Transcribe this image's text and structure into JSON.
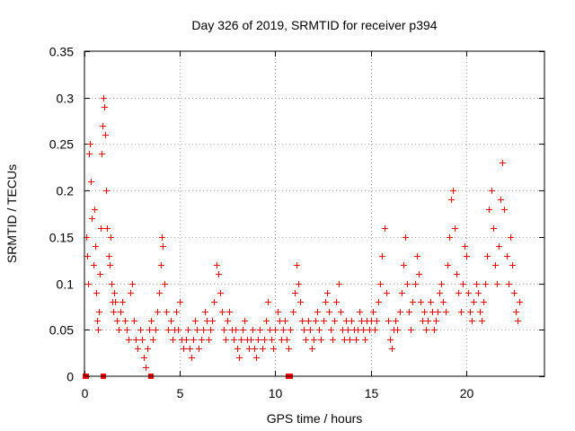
{
  "chart_data": {
    "type": "scatter",
    "title": "Day 326 of 2019, SRMTID for receiver p394",
    "xlabel": "GPS time / hours",
    "ylabel": "SRMTID / TECUs",
    "xlim": [
      0,
      24.1
    ],
    "ylim": [
      0,
      0.35
    ],
    "xticks": [
      0,
      5,
      10,
      15,
      20
    ],
    "xtick_labels": [
      "0",
      "5",
      "10",
      "15",
      "20"
    ],
    "yticks": [
      0,
      0.05,
      0.1,
      0.15,
      0.2,
      0.25,
      0.3,
      0.35
    ],
    "ytick_labels": [
      "0",
      "0.05",
      "0.1",
      "0.15",
      "0.2",
      "0.25",
      "0.3",
      "0.35"
    ],
    "grid": true,
    "marker": "+",
    "color": "#ff0000",
    "series": [
      {
        "name": "SRMTID",
        "points": [
          [
            0.1,
            0.15
          ],
          [
            0.15,
            0.13
          ],
          [
            0.2,
            0.1
          ],
          [
            0.25,
            0.24
          ],
          [
            0.3,
            0.25
          ],
          [
            0.35,
            0.21
          ],
          [
            0.4,
            0.17
          ],
          [
            0.45,
            0.12
          ],
          [
            0.5,
            0.18
          ],
          [
            0.55,
            0.14
          ],
          [
            0.6,
            0.09
          ],
          [
            0.65,
            0.06
          ],
          [
            0.7,
            0.05
          ],
          [
            0.75,
            0.07
          ],
          [
            0.8,
            0.11
          ],
          [
            0.85,
            0.16
          ],
          [
            0.9,
            0.24
          ],
          [
            0.95,
            0.27
          ],
          [
            1.0,
            0.3
          ],
          [
            1.05,
            0.29
          ],
          [
            1.1,
            0.26
          ],
          [
            1.15,
            0.2
          ],
          [
            1.2,
            0.16
          ],
          [
            1.25,
            0.13
          ],
          [
            1.3,
            0.12
          ],
          [
            1.35,
            0.15
          ],
          [
            1.4,
            0.1
          ],
          [
            1.45,
            0.08
          ],
          [
            1.5,
            0.07
          ],
          [
            1.55,
            0.09
          ],
          [
            1.6,
            0.08
          ],
          [
            1.7,
            0.06
          ],
          [
            1.8,
            0.05
          ],
          [
            1.9,
            0.07
          ],
          [
            2.0,
            0.08
          ],
          [
            2.1,
            0.06
          ],
          [
            2.2,
            0.05
          ],
          [
            2.3,
            0.04
          ],
          [
            2.4,
            0.09
          ],
          [
            2.5,
            0.1
          ],
          [
            2.6,
            0.06
          ],
          [
            2.7,
            0.04
          ],
          [
            2.8,
            0.03
          ],
          [
            2.9,
            0.05
          ],
          [
            3.0,
            0.04
          ],
          [
            3.1,
            0.02
          ],
          [
            3.2,
            0.01
          ],
          [
            3.3,
            0.03
          ],
          [
            3.4,
            0.05
          ],
          [
            3.5,
            0.06
          ],
          [
            3.6,
            0.04
          ],
          [
            3.7,
            0.05
          ],
          [
            3.8,
            0.07
          ],
          [
            3.9,
            0.09
          ],
          [
            4.0,
            0.12
          ],
          [
            4.05,
            0.15
          ],
          [
            4.1,
            0.14
          ],
          [
            4.2,
            0.1
          ],
          [
            4.3,
            0.07
          ],
          [
            4.4,
            0.05
          ],
          [
            4.5,
            0.06
          ],
          [
            4.6,
            0.04
          ],
          [
            4.7,
            0.05
          ],
          [
            4.8,
            0.07
          ],
          [
            4.9,
            0.05
          ],
          [
            5.0,
            0.08
          ],
          [
            5.1,
            0.04
          ],
          [
            5.2,
            0.03
          ],
          [
            5.3,
            0.04
          ],
          [
            5.4,
            0.05
          ],
          [
            5.5,
            0.03
          ],
          [
            5.6,
            0.02
          ],
          [
            5.7,
            0.04
          ],
          [
            5.8,
            0.06
          ],
          [
            5.9,
            0.05
          ],
          [
            6.0,
            0.03
          ],
          [
            6.1,
            0.04
          ],
          [
            6.2,
            0.05
          ],
          [
            6.3,
            0.07
          ],
          [
            6.4,
            0.06
          ],
          [
            6.5,
            0.04
          ],
          [
            6.6,
            0.05
          ],
          [
            6.7,
            0.06
          ],
          [
            6.8,
            0.08
          ],
          [
            6.9,
            0.12
          ],
          [
            7.0,
            0.11
          ],
          [
            7.1,
            0.09
          ],
          [
            7.2,
            0.07
          ],
          [
            7.3,
            0.05
          ],
          [
            7.4,
            0.04
          ],
          [
            7.5,
            0.06
          ],
          [
            7.6,
            0.07
          ],
          [
            7.7,
            0.05
          ],
          [
            7.8,
            0.04
          ],
          [
            7.9,
            0.05
          ],
          [
            8.0,
            0.03
          ],
          [
            8.1,
            0.02
          ],
          [
            8.2,
            0.04
          ],
          [
            8.3,
            0.05
          ],
          [
            8.4,
            0.06
          ],
          [
            8.5,
            0.04
          ],
          [
            8.6,
            0.03
          ],
          [
            8.7,
            0.04
          ],
          [
            8.8,
            0.05
          ],
          [
            8.9,
            0.03
          ],
          [
            9.0,
            0.02
          ],
          [
            9.1,
            0.04
          ],
          [
            9.2,
            0.05
          ],
          [
            9.3,
            0.03
          ],
          [
            9.4,
            0.04
          ],
          [
            9.5,
            0.06
          ],
          [
            9.6,
            0.08
          ],
          [
            9.7,
            0.05
          ],
          [
            9.8,
            0.04
          ],
          [
            9.9,
            0.03
          ],
          [
            10.0,
            0.05
          ],
          [
            10.1,
            0.07
          ],
          [
            10.2,
            0.06
          ],
          [
            10.3,
            0.04
          ],
          [
            10.4,
            0.05
          ],
          [
            10.5,
            0.06
          ],
          [
            10.6,
            0.04
          ],
          [
            10.7,
            0.03
          ],
          [
            10.8,
            0.05
          ],
          [
            10.9,
            0.07
          ],
          [
            11.0,
            0.09
          ],
          [
            11.1,
            0.12
          ],
          [
            11.2,
            0.1
          ],
          [
            11.3,
            0.08
          ],
          [
            11.4,
            0.06
          ],
          [
            11.5,
            0.05
          ],
          [
            11.6,
            0.04
          ],
          [
            11.7,
            0.06
          ],
          [
            11.8,
            0.05
          ],
          [
            11.9,
            0.03
          ],
          [
            12.0,
            0.04
          ],
          [
            12.1,
            0.06
          ],
          [
            12.2,
            0.07
          ],
          [
            12.3,
            0.05
          ],
          [
            12.4,
            0.04
          ],
          [
            12.5,
            0.06
          ],
          [
            12.6,
            0.08
          ],
          [
            12.7,
            0.09
          ],
          [
            12.8,
            0.07
          ],
          [
            12.9,
            0.05
          ],
          [
            13.0,
            0.04
          ],
          [
            13.1,
            0.06
          ],
          [
            13.2,
            0.08
          ],
          [
            13.3,
            0.1
          ],
          [
            13.4,
            0.07
          ],
          [
            13.5,
            0.05
          ],
          [
            13.6,
            0.04
          ],
          [
            13.7,
            0.06
          ],
          [
            13.8,
            0.05
          ],
          [
            13.9,
            0.04
          ],
          [
            14.0,
            0.06
          ],
          [
            14.1,
            0.05
          ],
          [
            14.2,
            0.04
          ],
          [
            14.3,
            0.05
          ],
          [
            14.4,
            0.07
          ],
          [
            14.5,
            0.06
          ],
          [
            14.6,
            0.05
          ],
          [
            14.7,
            0.04
          ],
          [
            14.8,
            0.06
          ],
          [
            14.9,
            0.05
          ],
          [
            15.0,
            0.06
          ],
          [
            15.1,
            0.07
          ],
          [
            15.2,
            0.05
          ],
          [
            15.3,
            0.06
          ],
          [
            15.4,
            0.08
          ],
          [
            15.5,
            0.1
          ],
          [
            15.6,
            0.13
          ],
          [
            15.7,
            0.16
          ],
          [
            15.8,
            0.09
          ],
          [
            15.9,
            0.06
          ],
          [
            16.0,
            0.04
          ],
          [
            16.1,
            0.03
          ],
          [
            16.2,
            0.05
          ],
          [
            16.3,
            0.06
          ],
          [
            16.4,
            0.05
          ],
          [
            16.5,
            0.07
          ],
          [
            16.6,
            0.09
          ],
          [
            16.7,
            0.12
          ],
          [
            16.8,
            0.15
          ],
          [
            16.9,
            0.1
          ],
          [
            17.0,
            0.07
          ],
          [
            17.1,
            0.05
          ],
          [
            17.2,
            0.08
          ],
          [
            17.3,
            0.1
          ],
          [
            17.4,
            0.13
          ],
          [
            17.5,
            0.11
          ],
          [
            17.6,
            0.08
          ],
          [
            17.7,
            0.06
          ],
          [
            17.8,
            0.07
          ],
          [
            17.9,
            0.05
          ],
          [
            18.0,
            0.06
          ],
          [
            18.1,
            0.08
          ],
          [
            18.2,
            0.07
          ],
          [
            18.3,
            0.05
          ],
          [
            18.4,
            0.06
          ],
          [
            18.5,
            0.07
          ],
          [
            18.6,
            0.09
          ],
          [
            18.7,
            0.1
          ],
          [
            18.8,
            0.08
          ],
          [
            18.9,
            0.07
          ],
          [
            19.0,
            0.12
          ],
          [
            19.1,
            0.15
          ],
          [
            19.2,
            0.19
          ],
          [
            19.3,
            0.2
          ],
          [
            19.4,
            0.16
          ],
          [
            19.5,
            0.11
          ],
          [
            19.6,
            0.09
          ],
          [
            19.7,
            0.07
          ],
          [
            19.8,
            0.1
          ],
          [
            19.9,
            0.14
          ],
          [
            20.0,
            0.13
          ],
          [
            20.1,
            0.09
          ],
          [
            20.2,
            0.07
          ],
          [
            20.3,
            0.06
          ],
          [
            20.4,
            0.08
          ],
          [
            20.5,
            0.1
          ],
          [
            20.6,
            0.09
          ],
          [
            20.7,
            0.07
          ],
          [
            20.8,
            0.06
          ],
          [
            20.9,
            0.08
          ],
          [
            21.0,
            0.1
          ],
          [
            21.1,
            0.13
          ],
          [
            21.2,
            0.18
          ],
          [
            21.3,
            0.2
          ],
          [
            21.4,
            0.16
          ],
          [
            21.5,
            0.12
          ],
          [
            21.6,
            0.1
          ],
          [
            21.7,
            0.14
          ],
          [
            21.8,
            0.19
          ],
          [
            21.9,
            0.23
          ],
          [
            22.0,
            0.18
          ],
          [
            22.1,
            0.13
          ],
          [
            22.2,
            0.1
          ],
          [
            22.3,
            0.15
          ],
          [
            22.4,
            0.12
          ],
          [
            22.5,
            0.09
          ],
          [
            22.6,
            0.07
          ],
          [
            22.7,
            0.06
          ],
          [
            22.8,
            0.08
          ]
        ],
        "zero_points": [
          0.05,
          0.1,
          1.0,
          3.5,
          10.7,
          10.8
        ]
      }
    ]
  }
}
